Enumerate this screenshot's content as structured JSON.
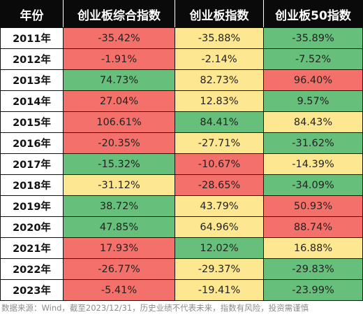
{
  "table": {
    "headers": [
      "年份",
      "创业板综合指数",
      "创业板指数",
      "创业板50指数"
    ],
    "rows": [
      {
        "year": "2011年",
        "cells": [
          {
            "value": "-35.42%",
            "color": "red"
          },
          {
            "value": "-35.88%",
            "color": "yellow"
          },
          {
            "value": "-35.89%",
            "color": "green"
          }
        ]
      },
      {
        "year": "2012年",
        "cells": [
          {
            "value": "-1.91%",
            "color": "red"
          },
          {
            "value": "-2.14%",
            "color": "yellow"
          },
          {
            "value": "-7.52%",
            "color": "green"
          }
        ]
      },
      {
        "year": "2013年",
        "cells": [
          {
            "value": "74.73%",
            "color": "green"
          },
          {
            "value": "82.73%",
            "color": "yellow"
          },
          {
            "value": "96.40%",
            "color": "red"
          }
        ]
      },
      {
        "year": "2014年",
        "cells": [
          {
            "value": "27.04%",
            "color": "red"
          },
          {
            "value": "12.83%",
            "color": "yellow"
          },
          {
            "value": "9.57%",
            "color": "green"
          }
        ]
      },
      {
        "year": "2015年",
        "cells": [
          {
            "value": "106.61%",
            "color": "red"
          },
          {
            "value": "84.41%",
            "color": "green"
          },
          {
            "value": "84.43%",
            "color": "yellow"
          }
        ]
      },
      {
        "year": "2016年",
        "cells": [
          {
            "value": "-20.35%",
            "color": "red"
          },
          {
            "value": "-27.71%",
            "color": "yellow"
          },
          {
            "value": "-31.62%",
            "color": "green"
          }
        ]
      },
      {
        "year": "2017年",
        "cells": [
          {
            "value": "-15.32%",
            "color": "green"
          },
          {
            "value": "-10.67%",
            "color": "red"
          },
          {
            "value": "-14.39%",
            "color": "yellow"
          }
        ]
      },
      {
        "year": "2018年",
        "cells": [
          {
            "value": "-31.12%",
            "color": "yellow"
          },
          {
            "value": "-28.65%",
            "color": "red"
          },
          {
            "value": "-34.09%",
            "color": "green"
          }
        ]
      },
      {
        "year": "2019年",
        "cells": [
          {
            "value": "38.72%",
            "color": "green"
          },
          {
            "value": "43.79%",
            "color": "yellow"
          },
          {
            "value": "50.93%",
            "color": "red"
          }
        ]
      },
      {
        "year": "2020年",
        "cells": [
          {
            "value": "47.85%",
            "color": "green"
          },
          {
            "value": "64.96%",
            "color": "yellow"
          },
          {
            "value": "88.74%",
            "color": "red"
          }
        ]
      },
      {
        "year": "2021年",
        "cells": [
          {
            "value": "17.93%",
            "color": "red"
          },
          {
            "value": "12.02%",
            "color": "green"
          },
          {
            "value": "16.88%",
            "color": "yellow"
          }
        ]
      },
      {
        "year": "2022年",
        "cells": [
          {
            "value": "-26.77%",
            "color": "red"
          },
          {
            "value": "-29.37%",
            "color": "yellow"
          },
          {
            "value": "-29.83%",
            "color": "green"
          }
        ]
      },
      {
        "year": "2023年",
        "cells": [
          {
            "value": "-5.41%",
            "color": "red"
          },
          {
            "value": "-19.41%",
            "color": "yellow"
          },
          {
            "value": "-23.99%",
            "color": "green"
          }
        ]
      }
    ]
  },
  "colors": {
    "red": "#f4706a",
    "yellow": "#fde791",
    "green": "#66bf7a",
    "header_bg": "#0a0a0a",
    "header_text": "#ffffff"
  },
  "footer": {
    "text": "数据来源：Wind，截至2023/12/31，历史业绩不代表未来，指数有风险，投资需谨慎"
  }
}
